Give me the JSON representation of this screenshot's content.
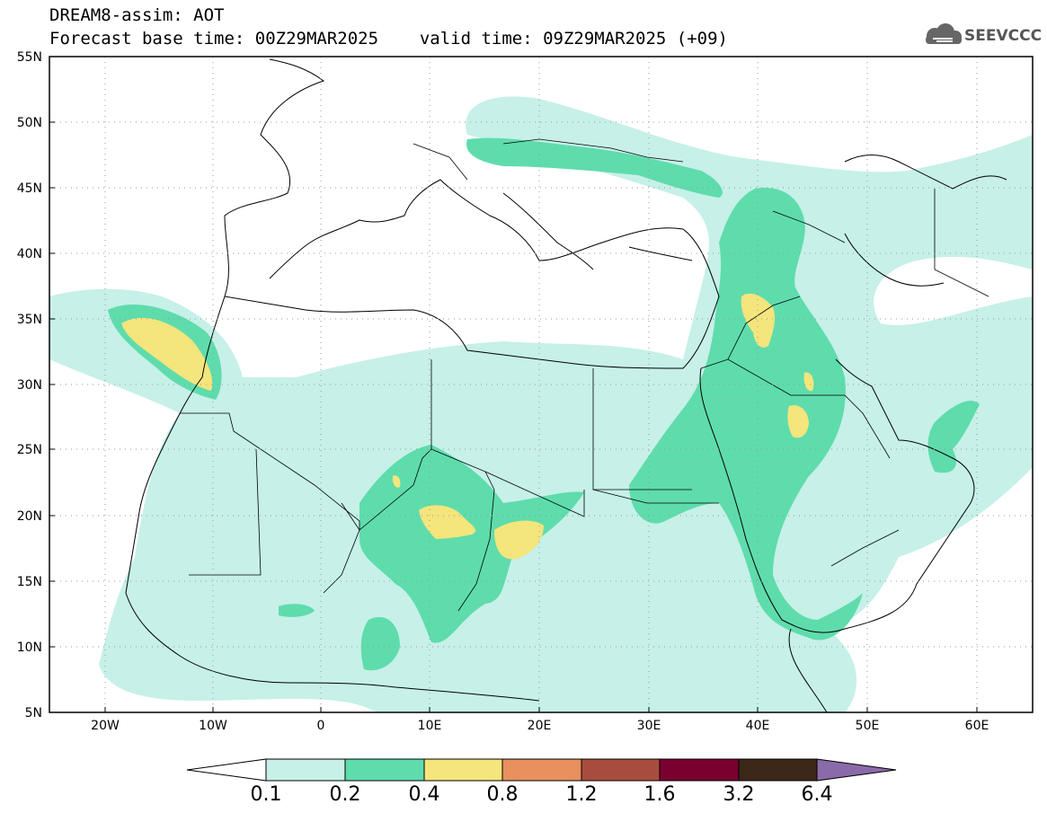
{
  "header": {
    "title": "DREAM8-assim: AOT",
    "base_label": "Forecast base time: 00Z29MAR2025",
    "valid_label": "valid time: 09Z29MAR2025 (+09)",
    "logo_text": "SEEVCCC"
  },
  "map": {
    "lon_ticks": [
      "20W",
      "10W",
      "0",
      "10E",
      "20E",
      "30E",
      "40E",
      "50E",
      "60E"
    ],
    "lat_ticks": [
      "55N",
      "50N",
      "45N",
      "40N",
      "35N",
      "30N",
      "25N",
      "20N",
      "15N",
      "10N",
      "5N"
    ],
    "grid": true
  },
  "colorbar": {
    "labels": [
      "0.1",
      "0.2",
      "0.4",
      "0.8",
      "1.2",
      "1.6",
      "3.2",
      "6.4"
    ],
    "colors": [
      "#ffffff",
      "#c6f0e8",
      "#5fdcac",
      "#f4e57c",
      "#e8905e",
      "#a84d3e",
      "#7a0030",
      "#3b2818",
      "#8a6aa8"
    ]
  }
}
